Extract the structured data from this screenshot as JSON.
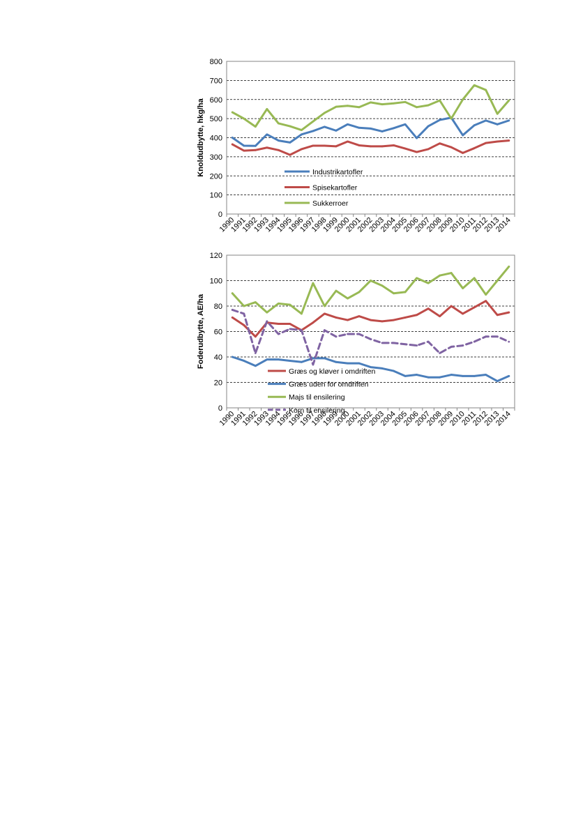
{
  "chart_data": [
    {
      "type": "line",
      "title": "",
      "xlabel": "",
      "ylabel": "Knoldudbytte, hkg/ha",
      "ylim": [
        0,
        800
      ],
      "yticks": [
        0,
        100,
        200,
        300,
        400,
        500,
        600,
        700,
        800
      ],
      "grid": "horizontal dashed",
      "legend": "inside-lower-left",
      "categories": [
        "1990",
        "1991",
        "1992",
        "1993",
        "1994",
        "1995",
        "1996",
        "1997",
        "1998",
        "1999",
        "2000",
        "2001",
        "2002",
        "2003",
        "2004",
        "2005",
        "2006",
        "2007",
        "2008",
        "2009",
        "2010",
        "2011",
        "2012",
        "2013",
        "2014"
      ],
      "series": [
        {
          "name": "Industrikartofler",
          "color": "#4a7ebb",
          "dash": false,
          "values": [
            400,
            358,
            357,
            417,
            385,
            375,
            417,
            435,
            457,
            437,
            470,
            452,
            448,
            433,
            450,
            470,
            398,
            460,
            493,
            505,
            413,
            465,
            490,
            470,
            490
          ]
        },
        {
          "name": "Spisekartofler",
          "color": "#be4b48",
          "dash": false,
          "values": [
            365,
            332,
            335,
            348,
            335,
            310,
            340,
            358,
            358,
            355,
            380,
            360,
            355,
            355,
            360,
            343,
            325,
            340,
            370,
            350,
            320,
            345,
            372,
            380,
            385
          ]
        },
        {
          "name": "Sukkerroer",
          "color": "#98b954",
          "dash": false,
          "values": [
            533,
            500,
            458,
            550,
            475,
            460,
            440,
            485,
            530,
            562,
            567,
            560,
            585,
            575,
            580,
            587,
            560,
            570,
            595,
            500,
            600,
            675,
            650,
            525,
            595
          ]
        }
      ]
    },
    {
      "type": "line",
      "title": "",
      "xlabel": "",
      "ylabel": "Foderudbytte, AE/ha",
      "ylim": [
        0,
        120
      ],
      "yticks": [
        0,
        20,
        40,
        60,
        80,
        100,
        120
      ],
      "grid": "horizontal dashed",
      "legend": "inside-lower-left",
      "categories": [
        "1990",
        "1991",
        "1992",
        "1993",
        "1994",
        "1995",
        "1996",
        "1997",
        "1998",
        "1999",
        "2000",
        "2001",
        "2002",
        "2003",
        "2004",
        "2005",
        "2006",
        "2007",
        "2008",
        "2009",
        "2010",
        "2011",
        "2012",
        "2013",
        "2014"
      ],
      "series": [
        {
          "name": "Græs og kløver i omdriften",
          "color": "#be4b48",
          "dash": false,
          "values": [
            71,
            65,
            56,
            67,
            66,
            66,
            61,
            67,
            74,
            71,
            69,
            72,
            69,
            68,
            69,
            71,
            73,
            78,
            72,
            80,
            74,
            79,
            84,
            73,
            75
          ]
        },
        {
          "name": "Græs uden for omdriften",
          "color": "#4a7ebb",
          "dash": false,
          "values": [
            40,
            37,
            33,
            38,
            38,
            37,
            36,
            39,
            39,
            36,
            35,
            35,
            32,
            31,
            29,
            25,
            26,
            24,
            24,
            26,
            25,
            25,
            26,
            21,
            25
          ]
        },
        {
          "name": "Majs til ensilering",
          "color": "#98b954",
          "dash": false,
          "values": [
            90,
            80,
            83,
            75,
            82,
            81,
            74,
            98,
            80,
            92,
            86,
            91,
            100,
            96,
            90,
            91,
            102,
            98,
            104,
            106,
            94,
            102,
            89,
            100,
            111
          ]
        },
        {
          "name": "Korn til ensilering",
          "color": "#7f63a2",
          "dash": true,
          "values": [
            77,
            74,
            43,
            68,
            58,
            62,
            61,
            34,
            61,
            56,
            58,
            58,
            54,
            51,
            51,
            50,
            49,
            52,
            43,
            48,
            49,
            52,
            56,
            56,
            52
          ]
        }
      ]
    }
  ]
}
